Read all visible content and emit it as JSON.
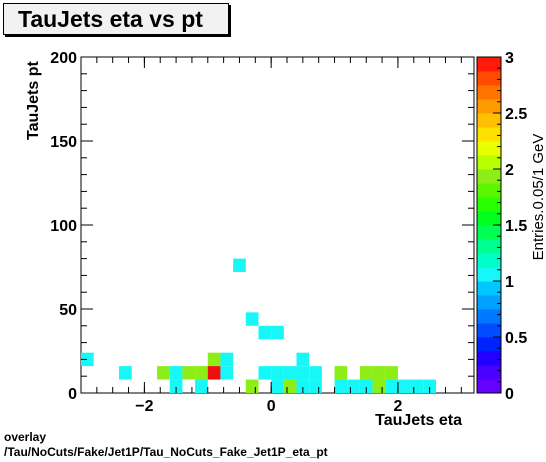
{
  "title": "TauJets eta vs pt",
  "footer": {
    "line1": "overlay",
    "line2": "/Tau/NoCuts/Fake/Jet1P/Tau_NoCuts_Fake_Jet1P_eta_pt"
  },
  "chart_data": {
    "type": "heatmap",
    "title": "TauJets eta vs pt",
    "xlabel": "TauJets eta",
    "ylabel": "TauJets pt",
    "zlabel": "Entries.0.05/1 GeV",
    "xlim": [
      -3.0,
      3.2
    ],
    "ylim": [
      0,
      200
    ],
    "zlim": [
      0,
      3
    ],
    "x_ticks": [
      -2,
      0,
      2
    ],
    "x_tick_labels": [
      "−2",
      "0",
      "2"
    ],
    "y_ticks": [
      0,
      50,
      100,
      150,
      200
    ],
    "y_tick_labels": [
      "0",
      "50",
      "100",
      "150",
      "200"
    ],
    "z_ticks": [
      0,
      0.5,
      1,
      1.5,
      2,
      2.5,
      3
    ],
    "z_tick_labels": [
      "0",
      "0.5",
      "1",
      "1.5",
      "2",
      "2.5",
      "3"
    ],
    "bin_width_x": 0.2,
    "bin_width_y": 8,
    "colors": {
      "1": "#18f7f7",
      "2": "#8ced17",
      "3": "#f20d0d"
    },
    "cells": [
      {
        "x": -2.9,
        "y": 20,
        "z": 1
      },
      {
        "x": -2.3,
        "y": 12,
        "z": 1
      },
      {
        "x": -1.7,
        "y": 12,
        "z": 2
      },
      {
        "x": -1.5,
        "y": 12,
        "z": 1
      },
      {
        "x": -1.5,
        "y": 4,
        "z": 1
      },
      {
        "x": -1.3,
        "y": 12,
        "z": 2
      },
      {
        "x": -1.1,
        "y": 12,
        "z": 2
      },
      {
        "x": -1.1,
        "y": 4,
        "z": 1
      },
      {
        "x": -0.9,
        "y": 20,
        "z": 2
      },
      {
        "x": -0.9,
        "y": 12,
        "z": 3
      },
      {
        "x": -0.7,
        "y": 20,
        "z": 1
      },
      {
        "x": -0.7,
        "y": 12,
        "z": 1
      },
      {
        "x": -0.5,
        "y": 76,
        "z": 1
      },
      {
        "x": -0.3,
        "y": 44,
        "z": 1
      },
      {
        "x": -0.3,
        "y": 4,
        "z": 2
      },
      {
        "x": -0.1,
        "y": 36,
        "z": 1
      },
      {
        "x": 0.1,
        "y": 36,
        "z": 1
      },
      {
        "x": -0.1,
        "y": 12,
        "z": 1
      },
      {
        "x": 0.1,
        "y": 12,
        "z": 1
      },
      {
        "x": 0.3,
        "y": 12,
        "z": 1
      },
      {
        "x": 0.5,
        "y": 12,
        "z": 1
      },
      {
        "x": 0.7,
        "y": 12,
        "z": 1
      },
      {
        "x": 0.5,
        "y": 20,
        "z": 1
      },
      {
        "x": 0.1,
        "y": 4,
        "z": 1
      },
      {
        "x": 0.3,
        "y": 4,
        "z": 2
      },
      {
        "x": 0.5,
        "y": 4,
        "z": 1
      },
      {
        "x": 0.7,
        "y": 4,
        "z": 1
      },
      {
        "x": 1.1,
        "y": 12,
        "z": 2
      },
      {
        "x": 1.1,
        "y": 4,
        "z": 1
      },
      {
        "x": 1.3,
        "y": 4,
        "z": 1
      },
      {
        "x": 1.5,
        "y": 12,
        "z": 2
      },
      {
        "x": 1.5,
        "y": 4,
        "z": 1
      },
      {
        "x": 1.7,
        "y": 12,
        "z": 2
      },
      {
        "x": 1.7,
        "y": 4,
        "z": 2
      },
      {
        "x": 1.9,
        "y": 12,
        "z": 2
      },
      {
        "x": 1.9,
        "y": 4,
        "z": 1
      },
      {
        "x": 2.1,
        "y": 4,
        "z": 1
      },
      {
        "x": 2.3,
        "y": 4,
        "z": 1
      },
      {
        "x": 2.5,
        "y": 4,
        "z": 1
      }
    ],
    "palette": [
      "#6600ff",
      "#4a00ff",
      "#2200ff",
      "#0022ff",
      "#004cff",
      "#0077ff",
      "#00a0ff",
      "#00c8ff",
      "#18f7f7",
      "#00ffc8",
      "#00ff90",
      "#00ff55",
      "#00ff1e",
      "#28ff00",
      "#5cf500",
      "#8ced17",
      "#b8ff00",
      "#e8ff00",
      "#ffe000",
      "#ffc000",
      "#ff9a00",
      "#ff7400",
      "#ff4a00",
      "#ff1a0a"
    ]
  }
}
